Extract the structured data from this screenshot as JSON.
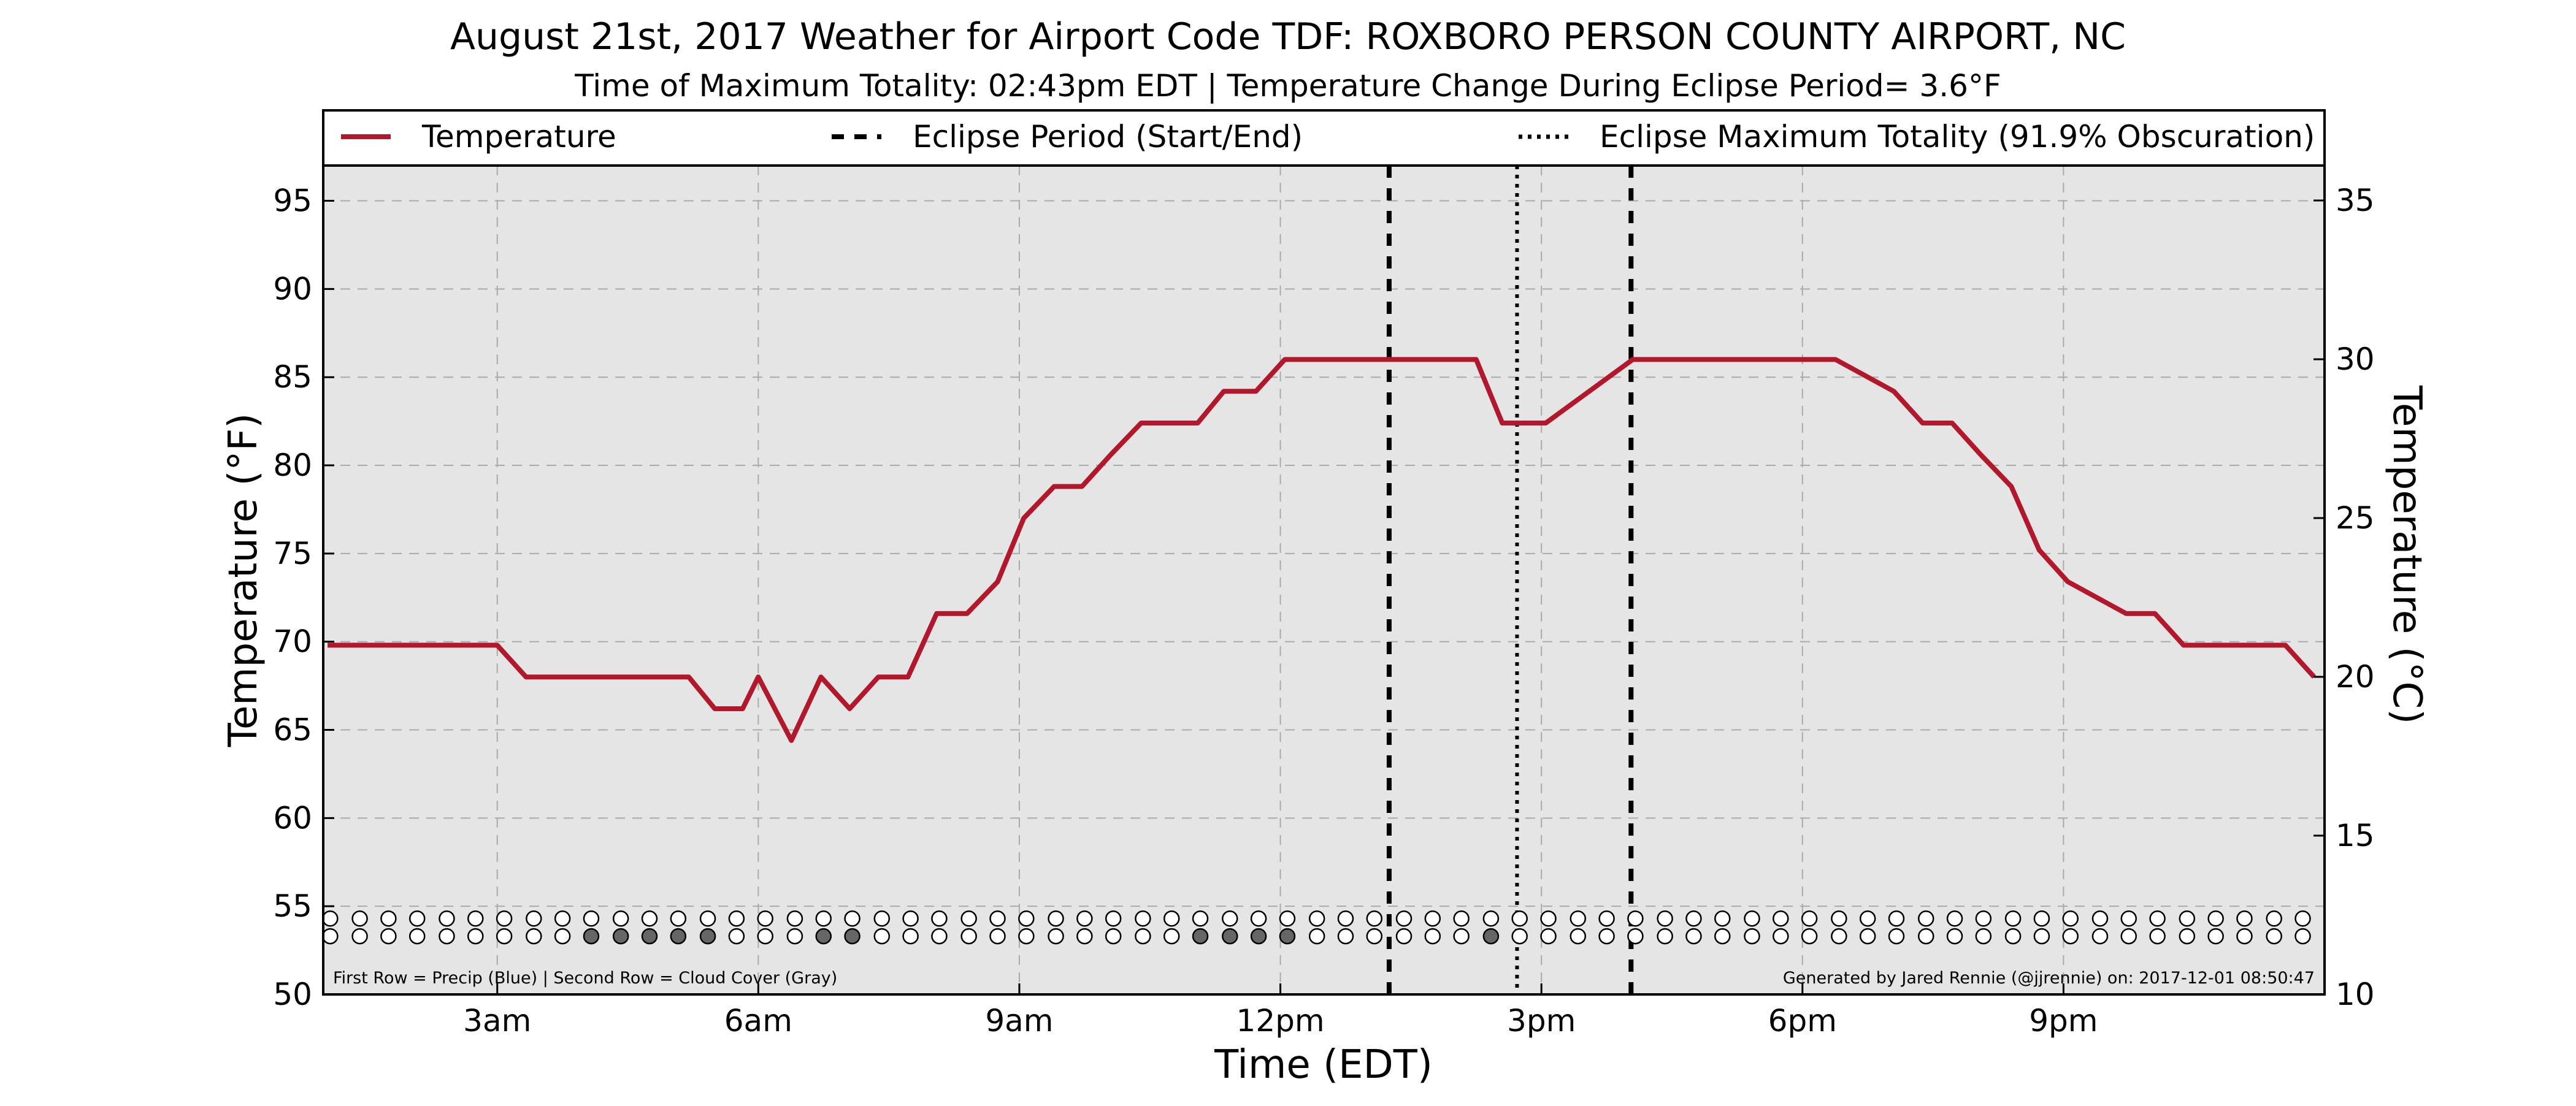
{
  "chart_data": {
    "type": "line",
    "title": "August 21st, 2017 Weather for Airport Code TDF: ROXBORO PERSON COUNTY AIRPORT, NC",
    "subtitle": "Time of Maximum Totality: 02:43pm EDT | Temperature Change During Eclipse Period= 3.6°F",
    "xlabel": "Time (EDT)",
    "ylabel_left": "Temperature (°F)",
    "ylabel_right": "Temperature (°C)",
    "xlim": [
      1.0,
      24.0
    ],
    "ylim": [
      50,
      97
    ],
    "ylim_celsius": [
      10,
      36.1
    ],
    "x_ticks": [
      3,
      6,
      9,
      12,
      15,
      18,
      21
    ],
    "x_tick_labels": [
      "3am",
      "6am",
      "9am",
      "12pm",
      "3pm",
      "6pm",
      "9pm"
    ],
    "y_ticks": [
      50,
      55,
      60,
      65,
      70,
      75,
      80,
      85,
      90,
      95
    ],
    "y_ticks_right": [
      10,
      15,
      20,
      25,
      30,
      35
    ],
    "grid": true,
    "background": "#e5e5e5",
    "series": [
      {
        "name": "Temperature",
        "color": "#b2182b",
        "x": [
          1.05,
          3.0,
          3.33,
          5.2,
          5.5,
          5.82,
          6.0,
          6.38,
          6.72,
          7.05,
          7.38,
          7.72,
          8.05,
          8.4,
          8.75,
          9.05,
          9.4,
          9.72,
          10.05,
          10.4,
          10.72,
          11.05,
          11.35,
          11.72,
          12.05,
          13.0,
          14.25,
          14.55,
          15.05,
          16.05,
          18.38,
          19.05,
          19.38,
          19.72,
          20.05,
          20.4,
          20.72,
          21.05,
          21.72,
          22.05,
          22.38,
          23.55,
          23.88
        ],
        "y": [
          69.8,
          69.8,
          68.0,
          68.0,
          66.2,
          66.2,
          68.0,
          64.4,
          68.0,
          66.2,
          68.0,
          68.0,
          71.6,
          71.6,
          73.4,
          77.0,
          78.8,
          78.8,
          80.6,
          82.4,
          82.4,
          82.4,
          84.2,
          84.2,
          86.0,
          86.0,
          86.0,
          82.4,
          82.4,
          86.0,
          86.0,
          84.2,
          82.4,
          82.4,
          80.6,
          78.8,
          75.2,
          73.4,
          71.6,
          71.6,
          69.8,
          69.8,
          68.0
        ]
      }
    ],
    "eclipse_period": {
      "label": "Eclipse Period (Start/End)",
      "start": 13.25,
      "end": 16.03,
      "color": "#000000",
      "style": "dashed"
    },
    "eclipse_max": {
      "label": "Eclipse Maximum Totality (91.9% Obscuration)",
      "x": 14.72,
      "color": "#000000",
      "style": "dotted"
    },
    "legend": {
      "placement": "top",
      "entries": [
        "Temperature",
        "Eclipse Period (Start/End)",
        "Eclipse Maximum Totality (91.9% Obscuration)"
      ]
    },
    "markers": {
      "precip_row_y": 54.3,
      "cloud_row_y": 53.3,
      "x": [
        1.08,
        1.42,
        1.75,
        2.08,
        2.42,
        2.75,
        3.08,
        3.42,
        3.75,
        4.08,
        4.42,
        4.75,
        5.08,
        5.42,
        5.75,
        6.08,
        6.42,
        6.75,
        7.08,
        7.42,
        7.75,
        8.08,
        8.42,
        8.75,
        9.08,
        9.42,
        9.75,
        10.08,
        10.42,
        10.75,
        11.08,
        11.42,
        11.75,
        12.08,
        12.42,
        12.75,
        13.08,
        13.42,
        13.75,
        14.08,
        14.42,
        14.75,
        15.08,
        15.42,
        15.75,
        16.08,
        16.42,
        16.75,
        17.08,
        17.42,
        17.75,
        18.08,
        18.42,
        18.75,
        19.08,
        19.42,
        19.75,
        20.08,
        20.42,
        20.75,
        21.08,
        21.42,
        21.75,
        22.08,
        22.42,
        22.75,
        23.08,
        23.42,
        23.75
      ],
      "cloud_filled_indices": [
        9,
        10,
        11,
        12,
        13,
        17,
        18,
        30,
        31,
        32,
        33,
        40
      ],
      "precip_color": "#ffffff",
      "cloud_filled_color": "#666666",
      "empty_color": "#ffffff"
    },
    "footnote_left": "First Row = Precip (Blue) | Second Row = Cloud Cover (Gray)",
    "footnote_right": "Generated by Jared Rennie (@jjrennie) on: 2017-12-01 08:50:47"
  }
}
